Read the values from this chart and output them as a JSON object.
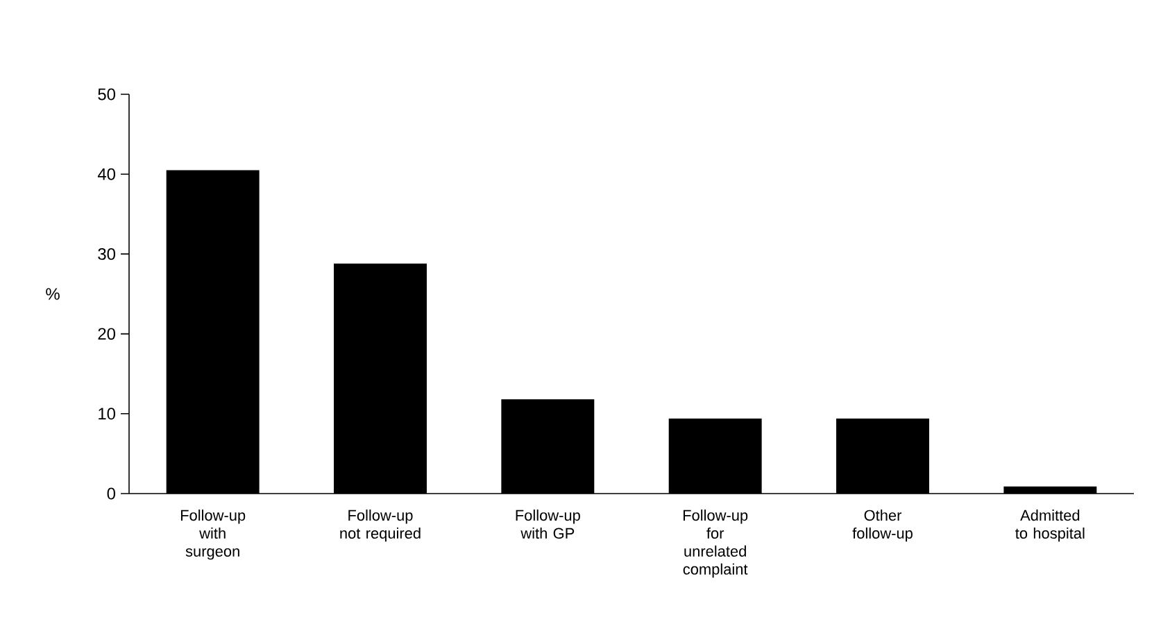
{
  "chart_data": {
    "type": "bar",
    "ylabel": "%",
    "categories": [
      "Follow-up with surgeon",
      "Follow-up not required",
      "Follow-up with GP",
      "Follow-up for unrelated complaint",
      "Other follow-up",
      "Admitted to hospital"
    ],
    "values": [
      40.5,
      28.8,
      11.8,
      9.4,
      9.4,
      0.9
    ],
    "color": "#000000",
    "ylim": [
      0,
      50
    ],
    "yticks": [
      0,
      10,
      20,
      30,
      40,
      50
    ]
  }
}
